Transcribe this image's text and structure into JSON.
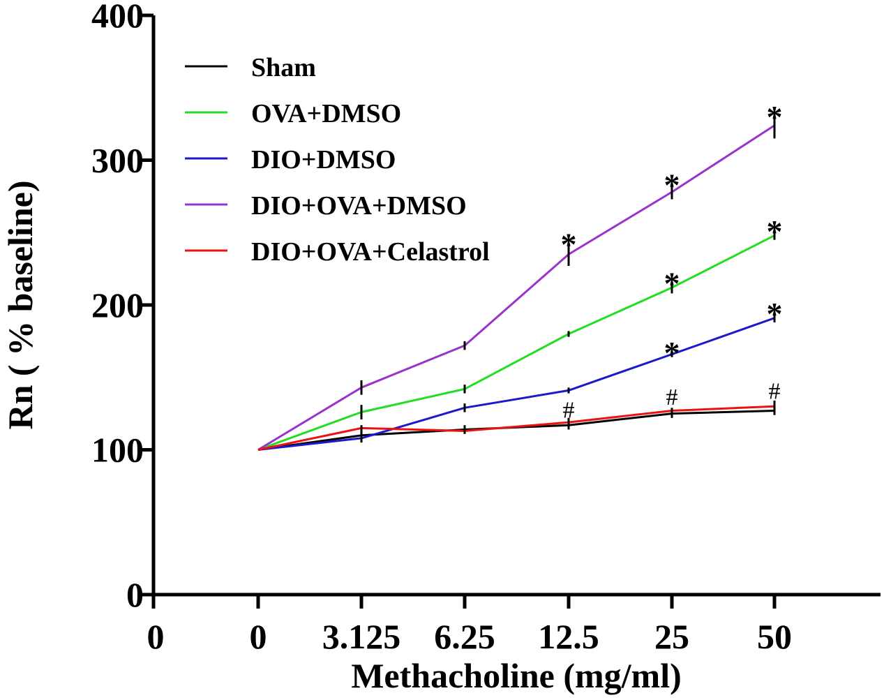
{
  "chart_data": {
    "type": "line",
    "title": "",
    "xlabel": "Methacholine  (mg/ml)",
    "ylabel": "Rn ( % baseline)",
    "ylim": [
      0,
      400
    ],
    "yticks": [
      "0",
      "100",
      "200",
      "300",
      "400"
    ],
    "x_axis_origin_label": "0",
    "categories": [
      "0",
      "3.125",
      "6.25",
      "12.5",
      "25",
      "50"
    ],
    "series": [
      {
        "name": "Sham",
        "color": "#000000",
        "values": [
          100,
          110,
          114,
          117,
          125,
          127
        ],
        "err": [
          0,
          3,
          3,
          3,
          3,
          3
        ]
      },
      {
        "name": "OVA+DMSO",
        "color": "#22dd22",
        "values": [
          100,
          126,
          142,
          180,
          212,
          248
        ],
        "err": [
          0,
          5,
          3,
          2,
          4,
          3
        ]
      },
      {
        "name": "DIO+DMSO",
        "color": "#1a1acc",
        "values": [
          100,
          108,
          129,
          141,
          166,
          191
        ],
        "err": [
          0,
          3,
          3,
          2,
          2,
          3
        ]
      },
      {
        "name": "DIO+OVA+DMSO",
        "color": "#9933cc",
        "values": [
          100,
          143,
          172,
          235,
          278,
          324
        ],
        "err": [
          0,
          5,
          3,
          8,
          5,
          9
        ]
      },
      {
        "name": "DIO+OVA+Celastrol",
        "color": "#ee1111",
        "values": [
          100,
          115,
          113,
          119,
          127,
          130
        ],
        "err": [
          0,
          2,
          2,
          3,
          2,
          4
        ]
      }
    ],
    "annotations": [
      {
        "text": "*",
        "category": "12.5",
        "y": 247
      },
      {
        "text": "*",
        "category": "25",
        "y": 288
      },
      {
        "text": "*",
        "category": "50",
        "y": 335
      },
      {
        "text": "*",
        "category": "25",
        "y": 220
      },
      {
        "text": "*",
        "category": "50",
        "y": 256
      },
      {
        "text": "*",
        "category": "25",
        "y": 172
      },
      {
        "text": "*",
        "category": "50",
        "y": 199
      },
      {
        "text": "#",
        "category": "12.5",
        "y": 127
      },
      {
        "text": "#",
        "category": "25",
        "y": 136
      },
      {
        "text": "#",
        "category": "50",
        "y": 140
      }
    ],
    "legend_position": "top-left"
  }
}
